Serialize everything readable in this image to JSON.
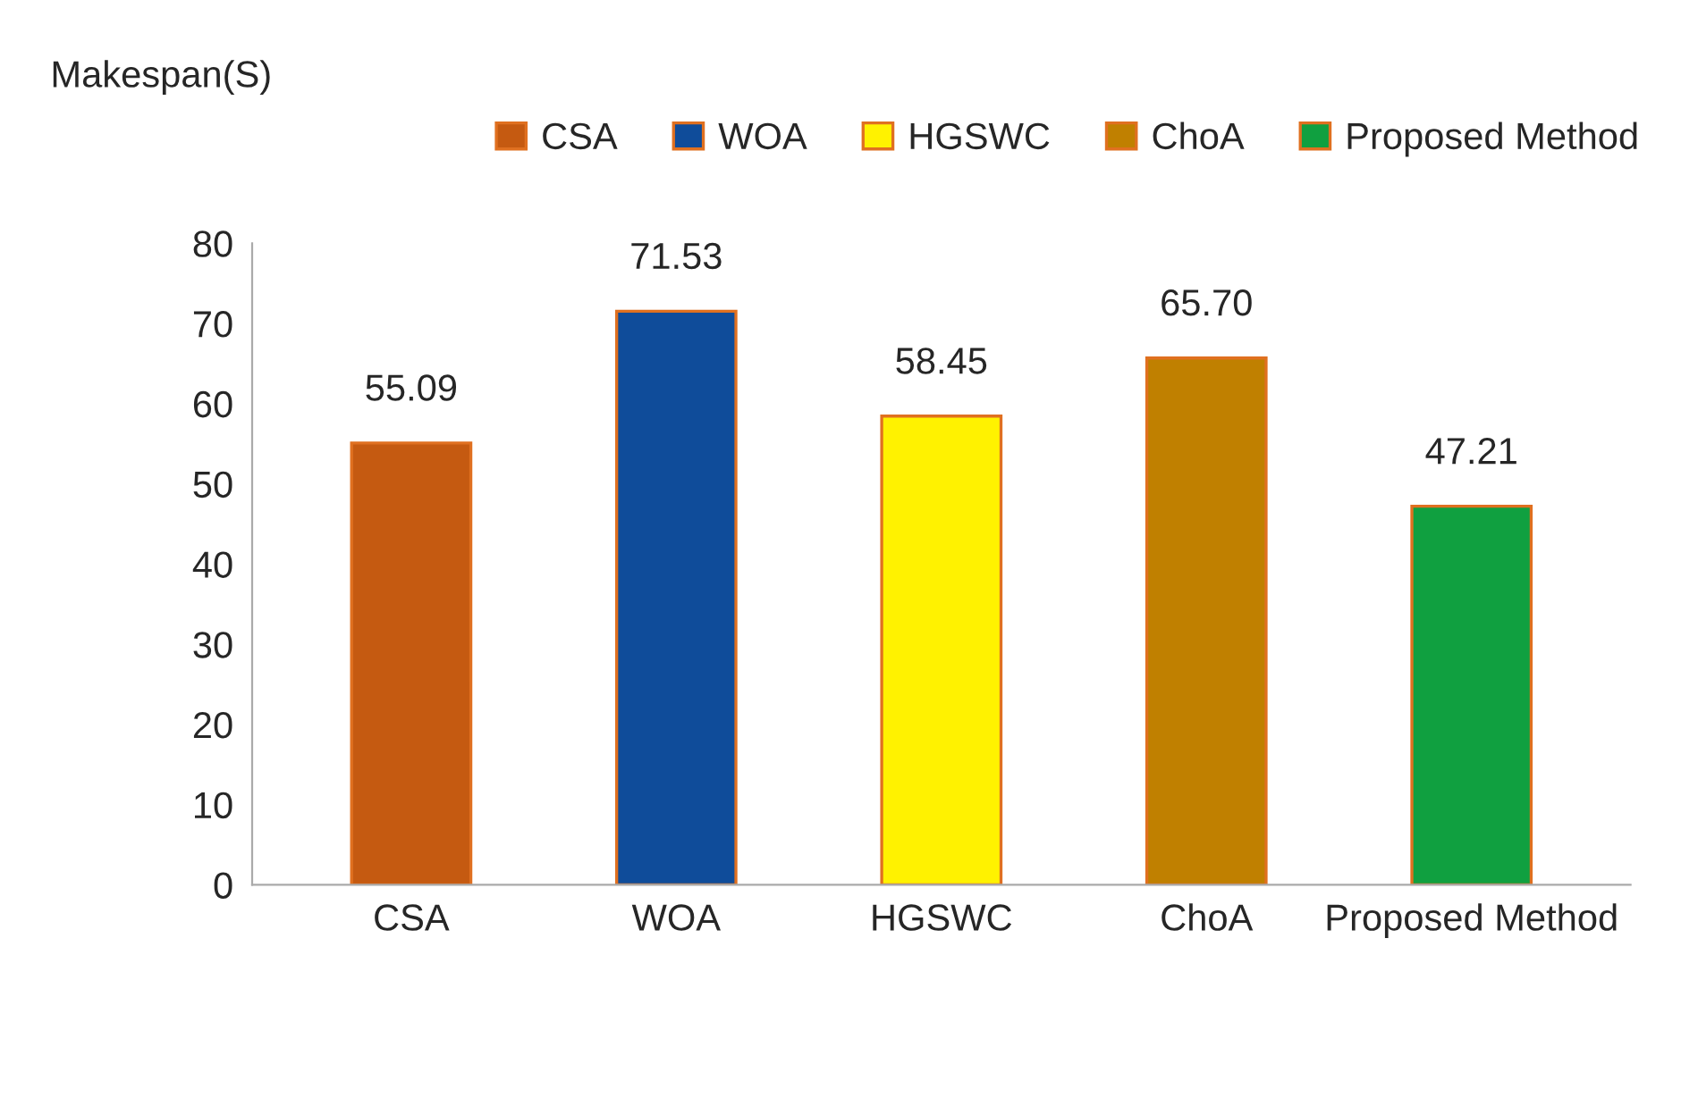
{
  "chart_data": {
    "type": "bar",
    "ylabel": "Makespan(S)",
    "categories": [
      "CSA",
      "WOA",
      "HGSWC",
      "ChoA",
      "Proposed Method"
    ],
    "series": [
      {
        "name": "CSA",
        "color": "#c55a11",
        "values": [
          55.09,
          null,
          null,
          null,
          null
        ],
        "value_labels": [
          "55.09",
          null,
          null,
          null,
          null
        ]
      },
      {
        "name": "WOA",
        "color": "#0f4c9a",
        "values": [
          null,
          71.53,
          null,
          null,
          null
        ],
        "value_labels": [
          null,
          "71.53",
          null,
          null,
          null
        ]
      },
      {
        "name": "HGSWC",
        "color": "#fff200",
        "values": [
          null,
          null,
          58.45,
          null,
          null
        ],
        "value_labels": [
          null,
          null,
          "58.45",
          null,
          null
        ]
      },
      {
        "name": "ChoA",
        "color": "#c08000",
        "values": [
          null,
          null,
          null,
          65.7,
          null
        ],
        "value_labels": [
          null,
          null,
          null,
          "65.70",
          null
        ]
      },
      {
        "name": "Proposed Method",
        "color": "#10a040",
        "values": [
          null,
          null,
          null,
          null,
          47.21
        ],
        "value_labels": [
          null,
          null,
          null,
          null,
          "47.21"
        ]
      }
    ],
    "ylim": [
      0,
      80
    ],
    "yticks": [
      0,
      10,
      20,
      30,
      40,
      50,
      60,
      70,
      80
    ],
    "legend": "top right"
  }
}
